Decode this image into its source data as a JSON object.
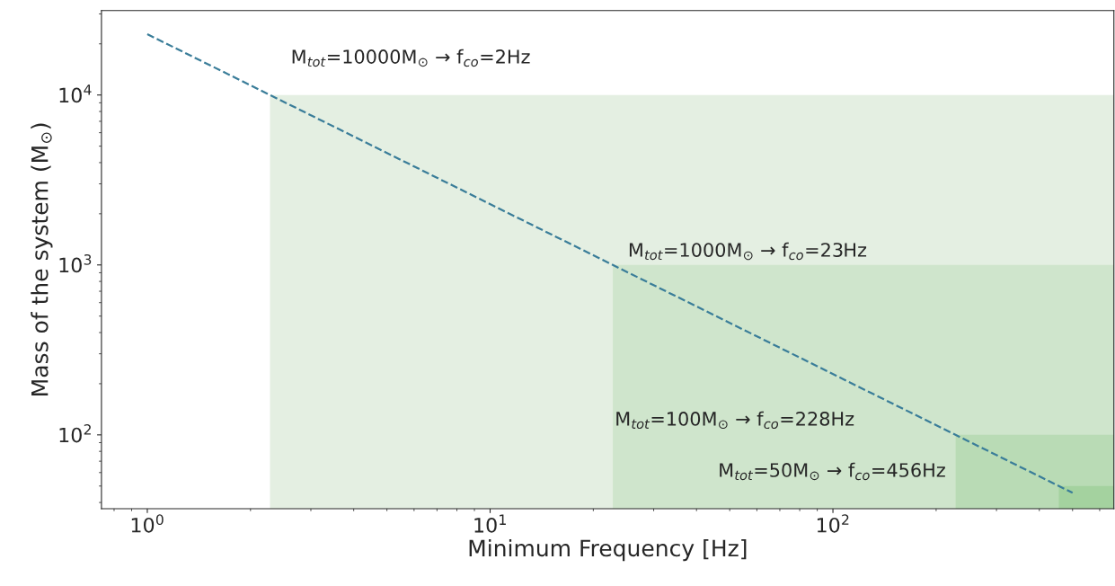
{
  "chart_data": {
    "type": "line",
    "xlabel": "Minimum Frequency [Hz]",
    "ylabel": "Mass of the system (M$_{⊙}$)",
    "log": "xy",
    "grid": false,
    "xlim": [
      0.735,
      660
    ],
    "ylim": [
      36.8,
      31400
    ],
    "xticks": [
      {
        "value": 1,
        "label": "10$^{0}$"
      },
      {
        "value": 10,
        "label": "10$^{1}$"
      },
      {
        "value": 100,
        "label": "10$^{2}$"
      }
    ],
    "yticks": [
      {
        "value": 100,
        "label": "10$^{2}$"
      },
      {
        "value": 1000,
        "label": "10$^{3}$"
      },
      {
        "value": 10000,
        "label": "10$^{4}$"
      }
    ],
    "series": [
      {
        "type": "area",
        "color": "#e4efe2",
        "x": [
          2.28,
          660
        ],
        "values": [
          10000,
          10000
        ]
      },
      {
        "type": "area",
        "color": "#cfe5cc",
        "x": [
          22.8,
          660
        ],
        "values": [
          1000,
          1000
        ]
      },
      {
        "type": "area",
        "color": "#b9dbb5",
        "x": [
          228,
          660
        ],
        "values": [
          100,
          100
        ]
      },
      {
        "type": "area",
        "color": "#a4d29f",
        "x": [
          456,
          660
        ],
        "values": [
          50,
          50
        ]
      },
      {
        "color": "#3a7d99",
        "line_style": "dashed",
        "x": [
          1,
          500
        ],
        "values": [
          22800,
          45.6
        ]
      }
    ],
    "annotations": [
      "M$_{tot}$=10000M$_{⊙}$ → f$_{co}$=2Hz",
      "M$_{tot}$=1000M$_{⊙}$ → f$_{co}$=23Hz",
      "M$_{tot}$=100M$_{⊙}$ → f$_{co}$=228Hz",
      "M$_{tot}$=50M$_{⊙}$ → f$_{co}$=456Hz"
    ]
  }
}
